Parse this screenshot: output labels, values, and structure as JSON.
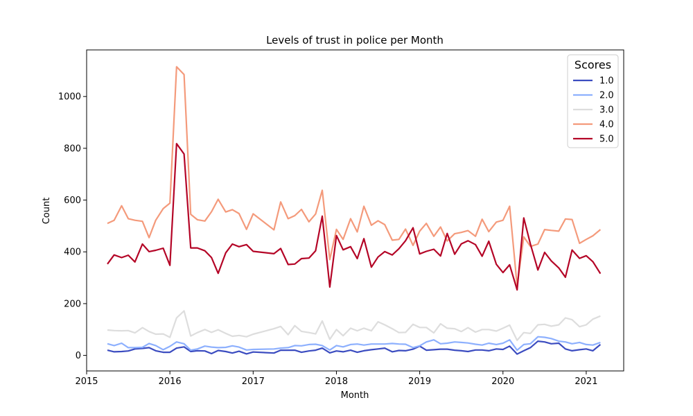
{
  "chart_data": {
    "type": "line",
    "title": "Levels of trust in police per Month",
    "xlabel": "Month",
    "ylabel": "Count",
    "xlim": [
      2015.0,
      2021.45
    ],
    "ylim": [
      -60,
      1180
    ],
    "xticks": [
      2015,
      2016,
      2017,
      2018,
      2019,
      2020,
      2021
    ],
    "yticks": [
      0,
      200,
      400,
      600,
      800,
      1000
    ],
    "grid": false,
    "legend": {
      "title": "Scores",
      "placement": "top-right"
    },
    "x": [
      2015.25,
      2015.33,
      2015.42,
      2015.5,
      2015.58,
      2015.67,
      2015.75,
      2015.83,
      2015.92,
      2016.0,
      2016.08,
      2016.17,
      2016.25,
      2016.33,
      2016.42,
      2016.5,
      2016.58,
      2016.67,
      2016.75,
      2016.83,
      2016.92,
      2017.0,
      2017.25,
      2017.33,
      2017.42,
      2017.5,
      2017.58,
      2017.67,
      2017.75,
      2017.83,
      2017.92,
      2018.0,
      2018.08,
      2018.17,
      2018.25,
      2018.33,
      2018.42,
      2018.5,
      2018.58,
      2018.67,
      2018.75,
      2018.83,
      2018.92,
      2019.0,
      2019.08,
      2019.17,
      2019.25,
      2019.33,
      2019.42,
      2019.5,
      2019.58,
      2019.67,
      2019.75,
      2019.83,
      2019.92,
      2020.0,
      2020.08,
      2020.17,
      2020.25,
      2020.33,
      2020.42,
      2020.5,
      2020.58,
      2020.67,
      2020.75,
      2020.83,
      2020.92,
      2021.0,
      2021.08,
      2021.17
    ],
    "series": [
      {
        "name": "1.0",
        "color": "#3b4cc0",
        "values": [
          20,
          14,
          15,
          17,
          25,
          27,
          30,
          18,
          12,
          12,
          28,
          33,
          15,
          18,
          17,
          7,
          19,
          15,
          9,
          16,
          6,
          13,
          9,
          20,
          20,
          20,
          12,
          17,
          20,
          28,
          10,
          17,
          14,
          20,
          12,
          18,
          22,
          25,
          28,
          14,
          19,
          18,
          24,
          36,
          20,
          22,
          24,
          24,
          20,
          18,
          15,
          21,
          21,
          18,
          25,
          23,
          36,
          5,
          18,
          30,
          55,
          52,
          45,
          47,
          25,
          18,
          22,
          25,
          18,
          42
        ]
      },
      {
        "name": "2.0",
        "color": "#8db0fe",
        "values": [
          45,
          38,
          47,
          30,
          30,
          31,
          46,
          38,
          22,
          35,
          52,
          45,
          20,
          25,
          36,
          32,
          30,
          31,
          37,
          32,
          21,
          23,
          25,
          28,
          30,
          38,
          37,
          42,
          43,
          38,
          21,
          38,
          33,
          42,
          44,
          40,
          44,
          44,
          44,
          46,
          44,
          43,
          30,
          37,
          52,
          60,
          45,
          47,
          52,
          50,
          48,
          43,
          40,
          47,
          42,
          47,
          60,
          20,
          42,
          45,
          72,
          70,
          65,
          55,
          52,
          45,
          50,
          42,
          40,
          50
        ]
      },
      {
        "name": "3.0",
        "color": "#dddddd",
        "values": [
          98,
          96,
          95,
          96,
          87,
          107,
          92,
          82,
          83,
          70,
          145,
          172,
          75,
          88,
          100,
          89,
          99,
          85,
          74,
          77,
          72,
          82,
          103,
          112,
          80,
          115,
          93,
          88,
          83,
          133,
          62,
          100,
          76,
          105,
          95,
          105,
          95,
          130,
          118,
          103,
          88,
          89,
          120,
          108,
          108,
          87,
          122,
          105,
          103,
          92,
          107,
          90,
          100,
          100,
          94,
          105,
          117,
          58,
          88,
          85,
          118,
          120,
          113,
          118,
          145,
          138,
          111,
          118,
          140,
          152
        ]
      },
      {
        "name": "4.0",
        "color": "#f49a7b",
        "values": [
          510,
          522,
          578,
          528,
          522,
          518,
          455,
          522,
          567,
          588,
          1115,
          1085,
          545,
          524,
          519,
          555,
          603,
          554,
          563,
          548,
          487,
          547,
          485,
          593,
          528,
          540,
          564,
          516,
          546,
          638,
          370,
          487,
          448,
          528,
          477,
          576,
          503,
          520,
          505,
          445,
          448,
          488,
          425,
          480,
          510,
          460,
          496,
          442,
          470,
          475,
          482,
          460,
          526,
          478,
          515,
          522,
          576,
          268,
          458,
          421,
          430,
          486,
          483,
          480,
          527,
          525,
          433,
          448,
          462,
          486
        ]
      },
      {
        "name": "5.0",
        "color": "#b40426",
        "values": [
          353,
          388,
          378,
          387,
          361,
          430,
          401,
          406,
          414,
          348,
          818,
          778,
          415,
          415,
          404,
          378,
          317,
          396,
          430,
          420,
          428,
          402,
          393,
          413,
          351,
          353,
          374,
          376,
          404,
          538,
          264,
          463,
          408,
          420,
          374,
          451,
          341,
          380,
          401,
          388,
          412,
          443,
          493,
          392,
          402,
          410,
          384,
          471,
          391,
          431,
          443,
          428,
          383,
          441,
          352,
          320,
          350,
          253,
          531,
          430,
          330,
          398,
          365,
          338,
          302,
          407,
          375,
          385,
          362,
          316
        ]
      }
    ]
  }
}
